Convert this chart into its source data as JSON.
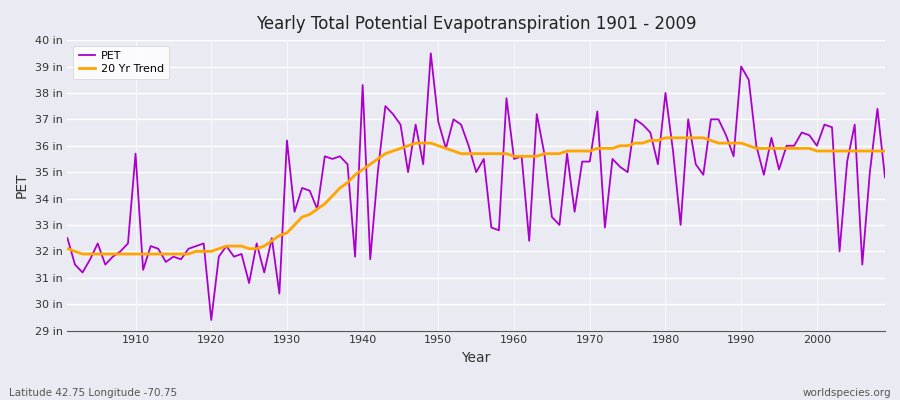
{
  "title": "Yearly Total Potential Evapotranspiration 1901 - 2009",
  "xlabel": "Year",
  "ylabel": "PET",
  "subtitle_left": "Latitude 42.75 Longitude -70.75",
  "subtitle_right": "worldspecies.org",
  "ylim": [
    29,
    40
  ],
  "ytick_labels": [
    "29 in",
    "30 in",
    "31 in",
    "32 in",
    "33 in",
    "34 in",
    "35 in",
    "36 in",
    "37 in",
    "38 in",
    "39 in",
    "40 in"
  ],
  "ytick_values": [
    29,
    30,
    31,
    32,
    33,
    34,
    35,
    36,
    37,
    38,
    39,
    40
  ],
  "pet_color": "#AA00CC",
  "trend_color": "#FFA500",
  "bg_color": "#EAEAF2",
  "legend_pet": "PET",
  "legend_trend": "20 Yr Trend",
  "years": [
    1901,
    1902,
    1903,
    1904,
    1905,
    1906,
    1907,
    1908,
    1909,
    1910,
    1911,
    1912,
    1913,
    1914,
    1915,
    1916,
    1917,
    1918,
    1919,
    1920,
    1921,
    1922,
    1923,
    1924,
    1925,
    1926,
    1927,
    1928,
    1929,
    1930,
    1931,
    1932,
    1933,
    1934,
    1935,
    1936,
    1937,
    1938,
    1939,
    1940,
    1941,
    1942,
    1943,
    1944,
    1945,
    1946,
    1947,
    1948,
    1949,
    1950,
    1951,
    1952,
    1953,
    1954,
    1955,
    1956,
    1957,
    1958,
    1959,
    1960,
    1961,
    1962,
    1963,
    1964,
    1965,
    1966,
    1967,
    1968,
    1969,
    1970,
    1971,
    1972,
    1973,
    1974,
    1975,
    1976,
    1977,
    1978,
    1979,
    1980,
    1981,
    1982,
    1983,
    1984,
    1985,
    1986,
    1987,
    1988,
    1989,
    1990,
    1991,
    1992,
    1993,
    1994,
    1995,
    1996,
    1997,
    1998,
    1999,
    2000,
    2001,
    2002,
    2003,
    2004,
    2005,
    2006,
    2007,
    2008,
    2009
  ],
  "pet_values": [
    32.5,
    31.5,
    31.2,
    31.7,
    32.3,
    31.5,
    31.8,
    32.0,
    32.3,
    35.7,
    31.3,
    32.2,
    32.1,
    31.6,
    31.8,
    31.7,
    32.1,
    32.2,
    32.3,
    29.4,
    31.8,
    32.2,
    31.8,
    31.9,
    30.8,
    32.3,
    31.2,
    32.5,
    30.4,
    36.2,
    33.5,
    34.4,
    34.3,
    33.6,
    35.6,
    35.5,
    35.6,
    35.3,
    31.8,
    38.3,
    31.7,
    35.0,
    37.5,
    37.2,
    36.8,
    35.0,
    36.8,
    35.3,
    39.5,
    36.9,
    35.9,
    37.0,
    36.8,
    36.0,
    35.0,
    35.5,
    32.9,
    32.8,
    37.8,
    35.5,
    35.6,
    32.4,
    37.2,
    35.7,
    33.3,
    33.0,
    35.7,
    33.5,
    35.4,
    35.4,
    37.3,
    32.9,
    35.5,
    35.2,
    35.0,
    37.0,
    36.8,
    36.5,
    35.3,
    38.0,
    35.8,
    33.0,
    37.0,
    35.3,
    34.9,
    37.0,
    37.0,
    36.4,
    35.6,
    39.0,
    38.5,
    36.0,
    34.9,
    36.3,
    35.1,
    36.0,
    36.0,
    36.5,
    36.4,
    36.0,
    36.8,
    36.7,
    32.0,
    35.4,
    36.8,
    31.5,
    35.0,
    37.4,
    34.8
  ],
  "trend_years": [
    1901,
    1902,
    1903,
    1904,
    1905,
    1906,
    1907,
    1908,
    1909,
    1910,
    1911,
    1912,
    1913,
    1914,
    1915,
    1916,
    1917,
    1918,
    1919,
    1920,
    1921,
    1922,
    1923,
    1924,
    1925,
    1926,
    1927,
    1928,
    1929,
    1930,
    1931,
    1932,
    1933,
    1934,
    1935,
    1936,
    1937,
    1938,
    1939,
    1940,
    1941,
    1942,
    1943,
    1944,
    1945,
    1946,
    1947,
    1948,
    1949,
    1950,
    1951,
    1952,
    1953,
    1954,
    1955,
    1956,
    1957,
    1958,
    1959,
    1960,
    1961,
    1962,
    1963,
    1964,
    1965,
    1966,
    1967,
    1968,
    1969,
    1970,
    1971,
    1972,
    1973,
    1974,
    1975,
    1976,
    1977,
    1978,
    1979,
    1980,
    1981,
    1982,
    1983,
    1984,
    1985,
    1986,
    1987,
    1988,
    1989,
    1990,
    1991,
    1992,
    1993,
    1994,
    1995,
    1996,
    1997,
    1998,
    1999,
    2000,
    2001,
    2002,
    2003,
    2004,
    2005,
    2006,
    2007,
    2008,
    2009
  ],
  "trend_values": [
    32.1,
    32.0,
    31.9,
    31.9,
    31.9,
    31.9,
    31.9,
    31.9,
    31.9,
    31.9,
    31.9,
    31.9,
    31.9,
    31.9,
    31.9,
    31.9,
    31.9,
    32.0,
    32.0,
    32.0,
    32.1,
    32.2,
    32.2,
    32.2,
    32.1,
    32.1,
    32.2,
    32.4,
    32.6,
    32.7,
    33.0,
    33.3,
    33.4,
    33.6,
    33.8,
    34.1,
    34.4,
    34.6,
    34.9,
    35.1,
    35.3,
    35.5,
    35.7,
    35.8,
    35.9,
    36.0,
    36.1,
    36.1,
    36.1,
    36.0,
    35.9,
    35.8,
    35.7,
    35.7,
    35.7,
    35.7,
    35.7,
    35.7,
    35.7,
    35.6,
    35.6,
    35.6,
    35.6,
    35.7,
    35.7,
    35.7,
    35.8,
    35.8,
    35.8,
    35.8,
    35.9,
    35.9,
    35.9,
    36.0,
    36.0,
    36.1,
    36.1,
    36.2,
    36.2,
    36.3,
    36.3,
    36.3,
    36.3,
    36.3,
    36.3,
    36.2,
    36.1,
    36.1,
    36.1,
    36.1,
    36.0,
    35.9,
    35.9,
    35.9,
    35.9,
    35.9,
    35.9,
    35.9,
    35.9,
    35.8,
    35.8,
    35.8,
    35.8,
    35.8,
    35.8,
    35.8,
    35.8,
    35.8,
    35.8
  ]
}
